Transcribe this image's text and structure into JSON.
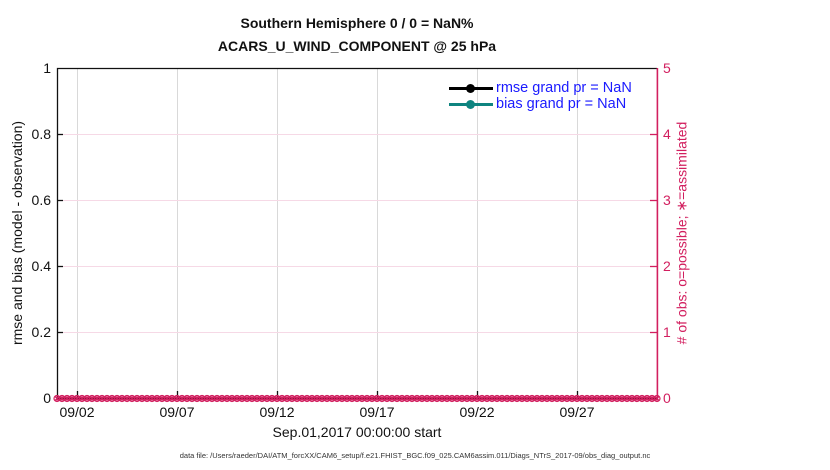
{
  "figure": {
    "caption": "data file: /Users/raeder/DAI/ATM_forcXX/CAM6_setup/f.e21.FHIST_BGC.f09_025.CAM6assim.011/Diags_NTrS_2017-09/obs_diag_output.nc"
  },
  "chart_data": {
    "type": "line",
    "title": "Southern Hemisphere 0 / 0 = NaN%",
    "subtitle": "ACARS_U_WIND_COMPONENT @ 25 hPa",
    "xlabel": "Sep.01,2017 00:00:00 start",
    "ylabel_left": "rmse and bias (model - observation)",
    "ylabel_right": "# of obs: o=possible; ∗=assimilated",
    "x_tick_labels": [
      "09/02",
      "09/07",
      "09/12",
      "09/17",
      "09/22",
      "09/27"
    ],
    "y_left_tick_labels": [
      "0",
      "0.2",
      "0.4",
      "0.6",
      "0.8",
      "1"
    ],
    "y_right_tick_labels": [
      "0",
      "1",
      "2",
      "3",
      "4",
      "5"
    ],
    "ylim_left": [
      0,
      1
    ],
    "ylim_right": [
      0,
      5
    ],
    "grid": true,
    "legend": {
      "position": "upper-right-inside",
      "boxed": false,
      "text_color": "#1a1aff"
    },
    "series": [
      {
        "name": "rmse grand pr = NaN",
        "color": "#000000",
        "marker": "filled-circle",
        "values": "NaN"
      },
      {
        "name": "bias grand pr = NaN",
        "color": "#0e8480",
        "marker": "filled-circle",
        "values": "NaN"
      }
    ],
    "obs_band": {
      "description": "o=possible and ∗=assimilated count markers, every time bin, all equal 0 on right axis",
      "marker_count": 121,
      "value": 0,
      "color": "#d21f5f"
    },
    "colors": {
      "right_axis": "#d21f5f",
      "left_axis": "#111111",
      "grid_vertical": "#d9d9d9",
      "grid_horizontal": "#f6d9e6"
    }
  }
}
